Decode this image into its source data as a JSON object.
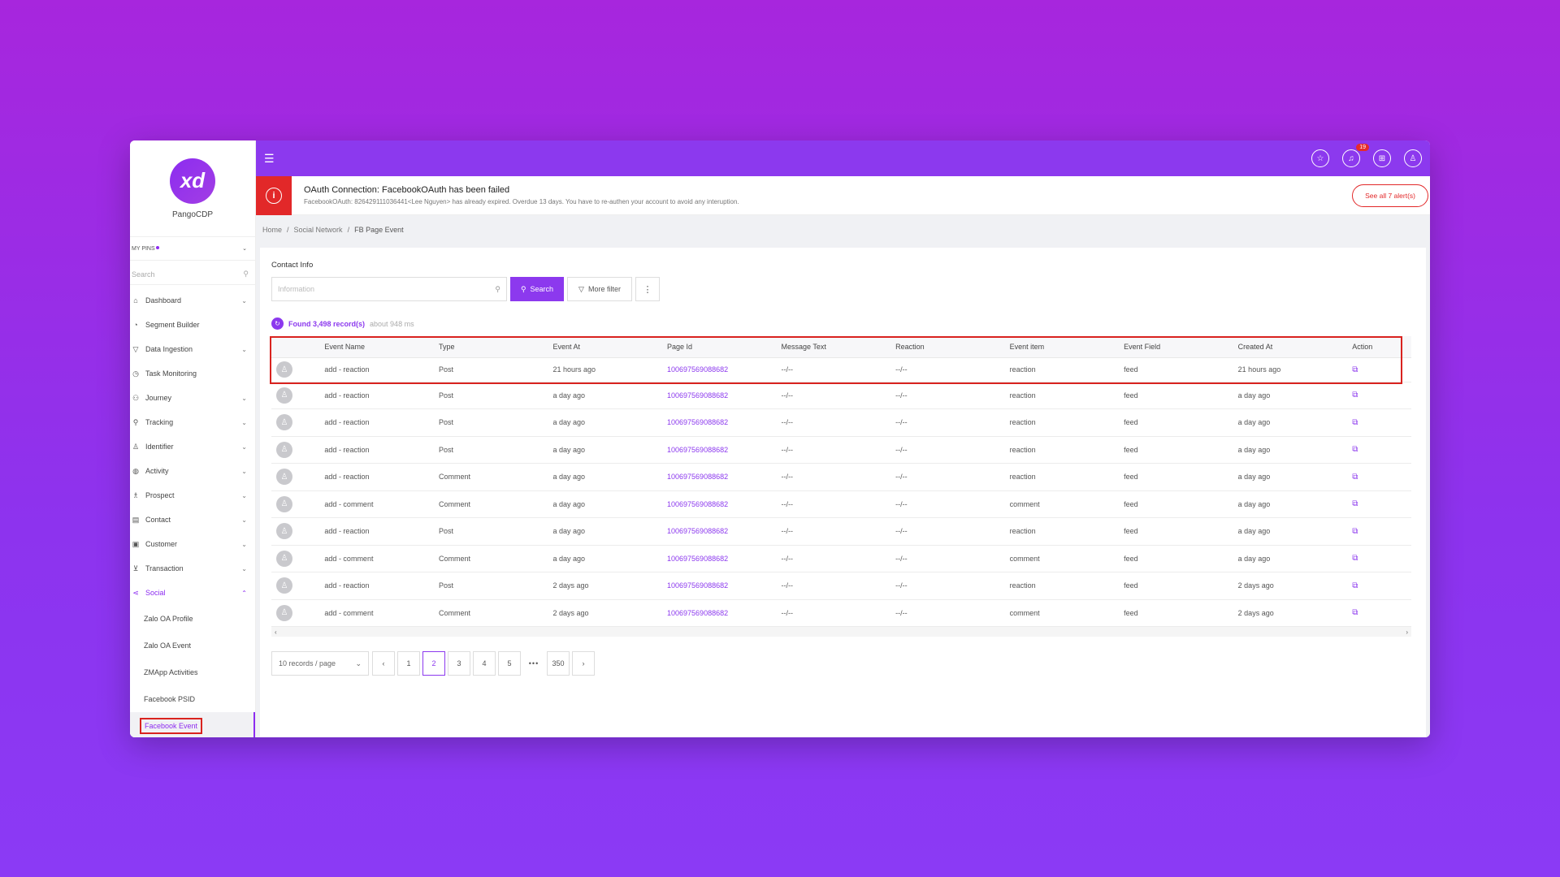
{
  "app": {
    "name": "PangoCDP",
    "logo_text": "xd"
  },
  "sidebar": {
    "pins_label": "MY PINS",
    "search_placeholder": "Search",
    "items": [
      {
        "label": "Dashboard",
        "icon": "home-icon",
        "chevron": true
      },
      {
        "label": "Segment Builder",
        "icon": "segment-icon",
        "chevron": false
      },
      {
        "label": "Data Ingestion",
        "icon": "filter-icon",
        "chevron": true
      },
      {
        "label": "Task Monitoring",
        "icon": "clock-icon",
        "chevron": false
      },
      {
        "label": "Journey",
        "icon": "journey-icon",
        "chevron": true
      },
      {
        "label": "Tracking",
        "icon": "tracking-icon",
        "chevron": true
      },
      {
        "label": "Identifier",
        "icon": "person-icon",
        "chevron": true
      },
      {
        "label": "Activity",
        "icon": "activity-icon",
        "chevron": true
      },
      {
        "label": "Prospect",
        "icon": "prospect-icon",
        "chevron": true
      },
      {
        "label": "Contact",
        "icon": "contact-icon",
        "chevron": true
      },
      {
        "label": "Customer",
        "icon": "customer-icon",
        "chevron": true
      },
      {
        "label": "Transaction",
        "icon": "cart-icon",
        "chevron": true
      },
      {
        "label": "Social",
        "icon": "share-icon",
        "chevron": true,
        "expanded": true
      }
    ],
    "social_sub": [
      "Zalo OA Profile",
      "Zalo OA Event",
      "ZMApp Activities",
      "Facebook PSID",
      "Facebook Event"
    ]
  },
  "topbar": {
    "notification_count": "19"
  },
  "alert": {
    "title": "OAuth Connection: FacebookOAuth has been failed",
    "description": "FacebookOAuth: 826429111036441<Lee Nguyen> has already expired. Overdue 13 days. You have to re-authen your account to avoid any interuption.",
    "button": "See all 7 alert(s)"
  },
  "breadcrumb": [
    "Home",
    "Social Network",
    "FB Page Event"
  ],
  "main": {
    "section_title": "Contact Info",
    "search_placeholder": "Information",
    "search_button": "Search",
    "more_filter": "More filter",
    "found_text": "Found 3,498 record(s)",
    "found_time": "about 948 ms"
  },
  "table": {
    "headers": [
      "Event Name",
      "Type",
      "Event At",
      "Page Id",
      "Message Text",
      "Reaction",
      "Event item",
      "Event Field",
      "Created At",
      "Action"
    ],
    "rows": [
      [
        "add - reaction",
        "Post",
        "21 hours ago",
        "100697569088682",
        "--/--",
        "--/--",
        "reaction",
        "feed",
        "21 hours ago"
      ],
      [
        "add - reaction",
        "Post",
        "a day ago",
        "100697569088682",
        "--/--",
        "--/--",
        "reaction",
        "feed",
        "a day ago"
      ],
      [
        "add - reaction",
        "Post",
        "a day ago",
        "100697569088682",
        "--/--",
        "--/--",
        "reaction",
        "feed",
        "a day ago"
      ],
      [
        "add - reaction",
        "Post",
        "a day ago",
        "100697569088682",
        "--/--",
        "--/--",
        "reaction",
        "feed",
        "a day ago"
      ],
      [
        "add - reaction",
        "Comment",
        "a day ago",
        "100697569088682",
        "--/--",
        "--/--",
        "reaction",
        "feed",
        "a day ago"
      ],
      [
        "add - comment",
        "Comment",
        "a day ago",
        "100697569088682",
        "--/--",
        "--/--",
        "comment",
        "feed",
        "a day ago"
      ],
      [
        "add - reaction",
        "Post",
        "a day ago",
        "100697569088682",
        "--/--",
        "--/--",
        "reaction",
        "feed",
        "a day ago"
      ],
      [
        "add - comment",
        "Comment",
        "a day ago",
        "100697569088682",
        "--/--",
        "--/--",
        "comment",
        "feed",
        "a day ago"
      ],
      [
        "add - reaction",
        "Post",
        "2 days ago",
        "100697569088682",
        "--/--",
        "--/--",
        "reaction",
        "feed",
        "2 days ago"
      ],
      [
        "add - comment",
        "Comment",
        "2 days ago",
        "100697569088682",
        "--/--",
        "--/--",
        "comment",
        "feed",
        "2 days ago"
      ]
    ]
  },
  "pagination": {
    "page_size": "10 records / page",
    "pages": [
      "1",
      "2",
      "3",
      "4",
      "5"
    ],
    "active_page": "2",
    "ellipsis": "•••",
    "last_page": "350"
  },
  "colors": {
    "accent": "#8c39ee",
    "alert": "#e22829",
    "highlight": "#d9231f"
  }
}
